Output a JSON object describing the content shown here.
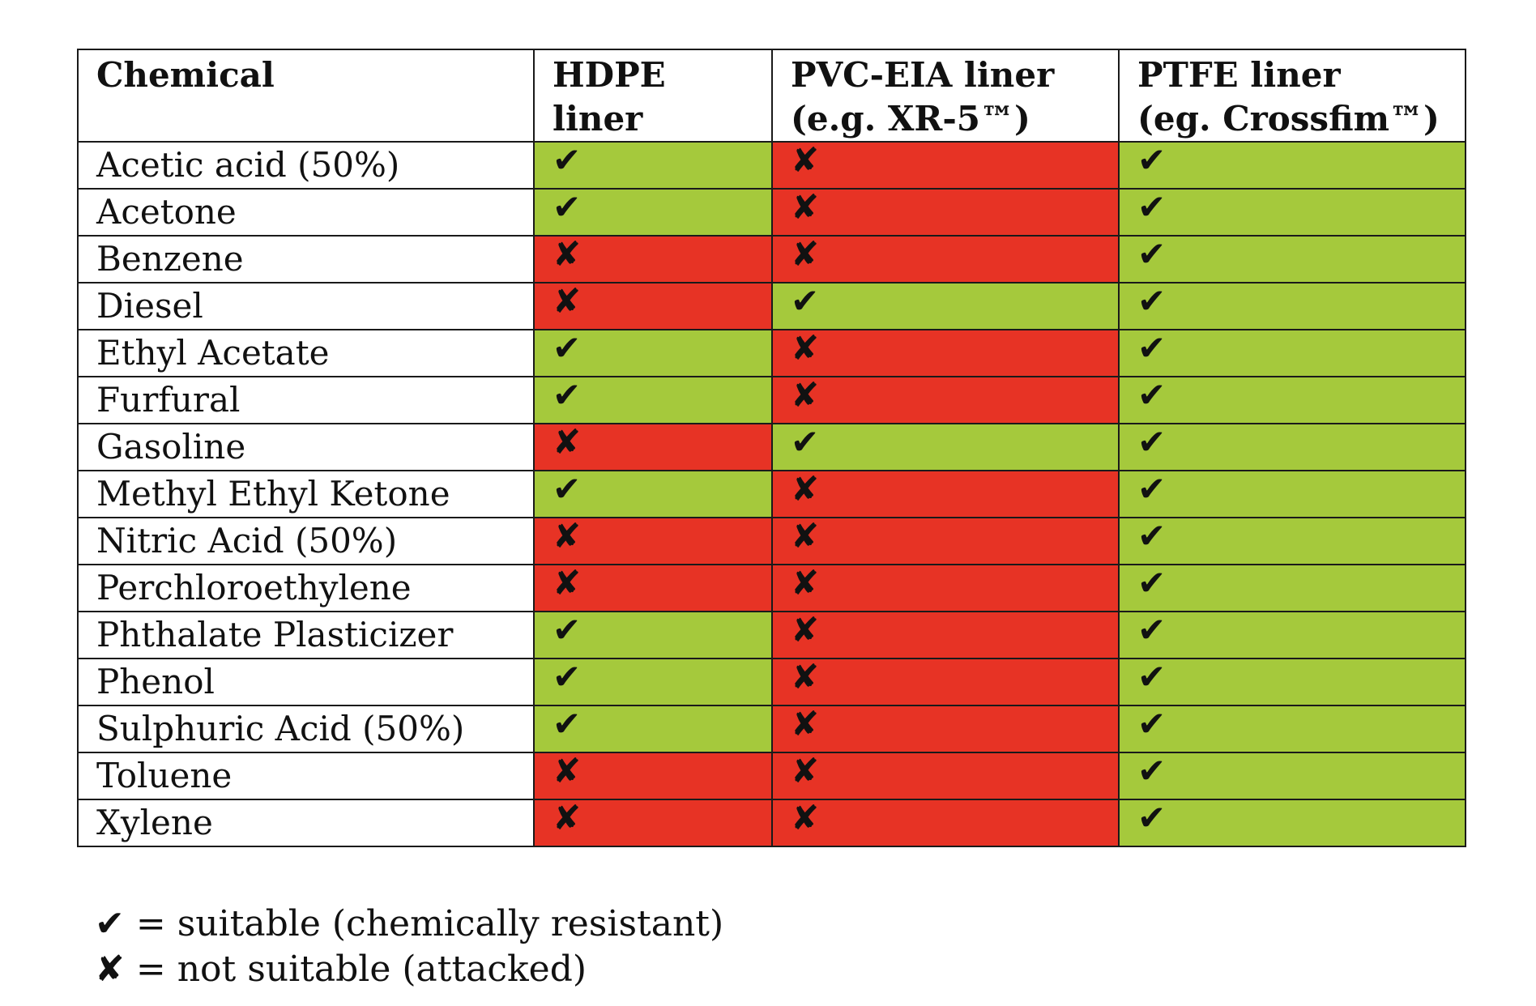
{
  "table": {
    "headers": [
      "Chemical",
      "HDPE\nliner",
      "PVC-EIA  liner\n(e.g. XR-5™)",
      "PTFE liner\n(eg. Crossfim™)"
    ],
    "rows": [
      {
        "chemical": "Acetic acid (50%)",
        "hdpe": "ok",
        "pvc": "bad",
        "ptfe": "ok"
      },
      {
        "chemical": "Acetone",
        "hdpe": "ok",
        "pvc": "bad",
        "ptfe": "ok"
      },
      {
        "chemical": "Benzene",
        "hdpe": "bad",
        "pvc": "bad",
        "ptfe": "ok"
      },
      {
        "chemical": "Diesel",
        "hdpe": "bad",
        "pvc": "ok",
        "ptfe": "ok"
      },
      {
        "chemical": "Ethyl Acetate",
        "hdpe": "ok",
        "pvc": "bad",
        "ptfe": "ok"
      },
      {
        "chemical": "Furfural",
        "hdpe": "ok",
        "pvc": "bad",
        "ptfe": "ok"
      },
      {
        "chemical": "Gasoline",
        "hdpe": "bad",
        "pvc": "ok",
        "ptfe": "ok"
      },
      {
        "chemical": "Methyl Ethyl Ketone",
        "hdpe": "ok",
        "pvc": "bad",
        "ptfe": "ok"
      },
      {
        "chemical": "Nitric Acid (50%)",
        "hdpe": "bad",
        "pvc": "bad",
        "ptfe": "ok"
      },
      {
        "chemical": "Perchloroethylene",
        "hdpe": "bad",
        "pvc": "bad",
        "ptfe": "ok"
      },
      {
        "chemical": "Phthalate Plasticizer",
        "hdpe": "ok",
        "pvc": "bad",
        "ptfe": "ok"
      },
      {
        "chemical": "Phenol",
        "hdpe": "ok",
        "pvc": "bad",
        "ptfe": "ok"
      },
      {
        "chemical": "Sulphuric Acid (50%)",
        "hdpe": "ok",
        "pvc": "bad",
        "ptfe": "ok"
      },
      {
        "chemical": "Toluene",
        "hdpe": "bad",
        "pvc": "bad",
        "ptfe": "ok"
      },
      {
        "chemical": "Xylene",
        "hdpe": "bad",
        "pvc": "bad",
        "ptfe": "ok"
      }
    ]
  },
  "symbols": {
    "ok": "✔",
    "bad": "✘"
  },
  "colors": {
    "suitable": "#a5c93c",
    "not_suitable": "#e73325"
  },
  "legend": {
    "suitable_symbol": "✔",
    "suitable_text": " = suitable (chemically resistant)",
    "unsuitable_symbol": "✘",
    "unsuitable_text": " = not suitable (attacked)"
  }
}
